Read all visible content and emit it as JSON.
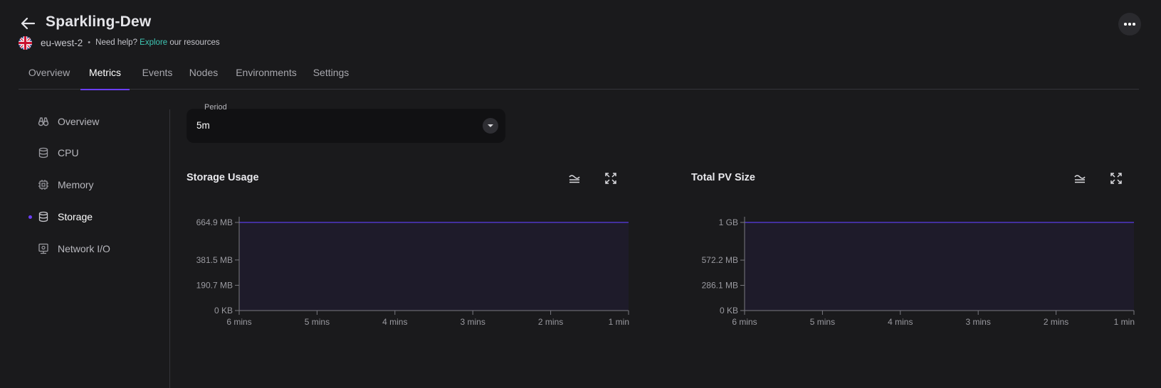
{
  "header": {
    "title": "Sparkling-Dew",
    "region": "eu-west-2",
    "help_prefix": "Need help?",
    "help_link": "Explore",
    "help_suffix": "our resources"
  },
  "tabs": [
    {
      "label": "Overview"
    },
    {
      "label": "Metrics",
      "active": true
    },
    {
      "label": "Events"
    },
    {
      "label": "Nodes"
    },
    {
      "label": "Environments"
    },
    {
      "label": "Settings"
    }
  ],
  "sidebar": {
    "items": [
      {
        "label": "Overview",
        "icon": "binoculars-icon"
      },
      {
        "label": "CPU",
        "icon": "database-icon"
      },
      {
        "label": "Memory",
        "icon": "chip-icon"
      },
      {
        "label": "Storage",
        "icon": "database-icon",
        "active": true
      },
      {
        "label": "Network I/O",
        "icon": "network-icon"
      }
    ]
  },
  "period": {
    "label": "Period",
    "value": "5m"
  },
  "colors": {
    "accent": "#6b3ef5",
    "link": "#3fc6b4",
    "background": "#1a1a1c"
  },
  "chart_data": [
    {
      "type": "area",
      "title": "Storage Usage",
      "x": [
        "6 mins",
        "5 mins",
        "4 mins",
        "3 mins",
        "2 mins",
        "1 min"
      ],
      "series": [
        {
          "values": [
            664.9,
            664.9,
            664.9,
            664.9,
            664.9,
            664.9
          ]
        }
      ],
      "unit": "MB",
      "y_ticks": [
        {
          "value": 0,
          "label": "0 KB"
        },
        {
          "value": 190.7,
          "label": "190.7 MB"
        },
        {
          "value": 381.5,
          "label": "381.5 MB"
        },
        {
          "value": 664.9,
          "label": "664.9 MB"
        }
      ],
      "ylim": [
        0,
        664.9
      ],
      "grid": false
    },
    {
      "type": "area",
      "title": "Total PV Size",
      "x": [
        "6 mins",
        "5 mins",
        "4 mins",
        "3 mins",
        "2 mins",
        "1 min"
      ],
      "series": [
        {
          "values": [
            1000,
            1000,
            1000,
            1000,
            1000,
            1000
          ]
        }
      ],
      "unit": "MB",
      "y_ticks": [
        {
          "value": 0,
          "label": "0 KB"
        },
        {
          "value": 286.1,
          "label": "286.1 MB"
        },
        {
          "value": 572.2,
          "label": "572.2 MB"
        },
        {
          "value": 1000,
          "label": "1 GB"
        }
      ],
      "ylim": [
        0,
        1000
      ],
      "grid": false
    }
  ]
}
